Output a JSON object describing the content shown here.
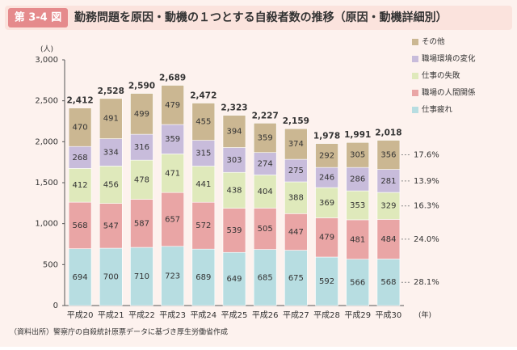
{
  "chart_data": {
    "type": "stacked-bar",
    "figure_label": "第 3-4 図",
    "title": "勤務問題を原因・動機の１つとする自殺者数の推移（原因・動機詳細別）",
    "y_unit": "(人)",
    "x_unit": "(年)",
    "source": "（資料出所）警察庁の自殺統計原票データに基づき厚生労働省作成",
    "categories": [
      "平成20",
      "平成21",
      "平成22",
      "平成23",
      "平成24",
      "平成25",
      "平成26",
      "平成27",
      "平成28",
      "平成29",
      "平成30"
    ],
    "series": [
      {
        "name": "仕事疲れ",
        "color": "#b7dde1",
        "values": [
          694,
          700,
          710,
          723,
          689,
          649,
          685,
          675,
          592,
          566,
          568
        ]
      },
      {
        "name": "職場の人間関係",
        "color": "#e9a5a5",
        "values": [
          568,
          547,
          587,
          657,
          572,
          539,
          505,
          447,
          479,
          481,
          484
        ]
      },
      {
        "name": "仕事の失敗",
        "color": "#dfe9bb",
        "values": [
          412,
          456,
          478,
          471,
          441,
          438,
          404,
          388,
          369,
          353,
          329
        ]
      },
      {
        "name": "職場環境の変化",
        "color": "#c8bcdb",
        "values": [
          268,
          334,
          316,
          359,
          315,
          303,
          274,
          275,
          246,
          286,
          281
        ]
      },
      {
        "name": "その他",
        "color": "#cbb792",
        "values": [
          470,
          491,
          499,
          479,
          455,
          394,
          359,
          374,
          292,
          305,
          356
        ]
      }
    ],
    "totals": {
      "values": [
        2412,
        2528,
        2590,
        2689,
        2472,
        2323,
        2227,
        2159,
        1978,
        1991,
        2018
      ],
      "value_labels": [
        "2,412",
        "2,528",
        "2,590",
        "2,689",
        "2,472",
        "2,323",
        "2,227",
        "2,159",
        "1,978",
        "1,991",
        "2,018"
      ]
    },
    "shares": {
      "values": [
        28.1,
        24.0,
        16.3,
        13.9,
        17.6
      ],
      "value_labels": [
        "28.1%",
        "24.0%",
        "16.3%",
        "13.9%",
        "17.6%"
      ]
    },
    "ylim": [
      0,
      3000
    ],
    "yticks": [
      0,
      500,
      {
        "value": 1000,
        "label": "1,000"
      },
      {
        "value": 1500,
        "label": "1,500"
      },
      {
        "value": 2000,
        "label": "2,000"
      },
      {
        "value": 2500,
        "label": "2,500"
      },
      {
        "value": 3000,
        "label": "3,000"
      }
    ]
  }
}
